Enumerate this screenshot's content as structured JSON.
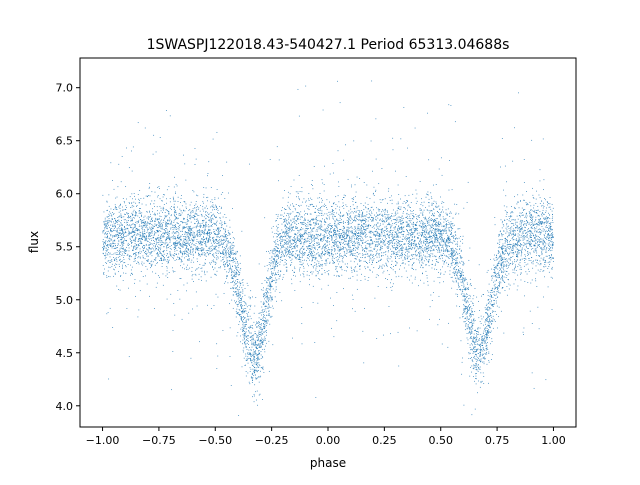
{
  "chart_data": {
    "type": "scatter",
    "title": "1SWASPJ122018.43-540427.1 Period 65313.04688s",
    "xlabel": "phase",
    "ylabel": "flux",
    "xlim": [
      -1.1,
      1.1
    ],
    "ylim": [
      3.8,
      7.28
    ],
    "xticks": [
      -1.0,
      -0.75,
      -0.5,
      -0.25,
      0.0,
      0.25,
      0.5,
      0.75,
      1.0
    ],
    "xtick_labels": [
      "−1.00",
      "−0.75",
      "−0.50",
      "−0.25",
      "0.00",
      "0.25",
      "0.50",
      "0.75",
      "1.00"
    ],
    "yticks": [
      4.0,
      4.5,
      5.0,
      5.5,
      6.0,
      6.5,
      7.0
    ],
    "ytick_labels": [
      "4.0",
      "4.5",
      "5.0",
      "5.5",
      "6.0",
      "6.5",
      "7.0"
    ],
    "grid": false,
    "point_color": "#1f77b4",
    "series": [
      {
        "x_range": [
          -1.0,
          1.0
        ],
        "baseline_flux": 5.6,
        "eclipses": [
          {
            "phase": -0.33,
            "min_flux": 4.5
          },
          {
            "phase": 0.67,
            "min_flux": 4.5
          }
        ]
      }
    ]
  }
}
